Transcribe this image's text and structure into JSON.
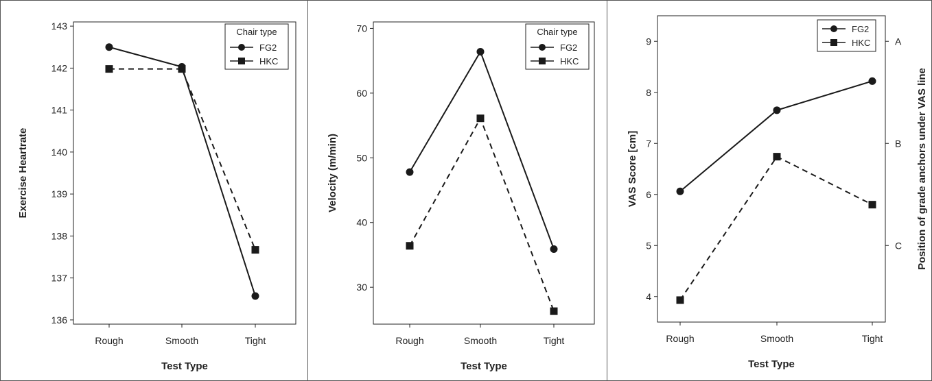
{
  "chart_data": [
    {
      "type": "line",
      "categories": [
        "Rough",
        "Smooth",
        "Tight"
      ],
      "xlabel": "Test Type",
      "ylabel": "Exercise Heartrate",
      "ylim": [
        135.9,
        143.1
      ],
      "yticks": [
        136,
        137,
        138,
        139,
        140,
        141,
        142,
        143
      ],
      "legend": {
        "title": "Chair type",
        "position": "top-right"
      },
      "series": [
        {
          "name": "FG2",
          "marker": "circle",
          "line": "solid",
          "values": [
            142.5,
            142.03,
            136.57
          ]
        },
        {
          "name": "HKC",
          "marker": "square",
          "line": "dashed",
          "values": [
            141.98,
            141.98,
            137.67
          ]
        }
      ]
    },
    {
      "type": "line",
      "categories": [
        "Rough",
        "Smooth",
        "Tight"
      ],
      "xlabel": "Test Type",
      "ylabel": "Velocity (m/min)",
      "ylim": [
        24.3,
        71
      ],
      "yticks": [
        30,
        40,
        50,
        60,
        70
      ],
      "legend": {
        "title": "Chair type",
        "position": "top-right"
      },
      "series": [
        {
          "name": "FG2",
          "marker": "circle",
          "line": "solid",
          "values": [
            47.8,
            66.4,
            35.9
          ]
        },
        {
          "name": "HKC",
          "marker": "square",
          "line": "dashed",
          "values": [
            36.4,
            56.1,
            26.3
          ]
        }
      ]
    },
    {
      "type": "line",
      "categories": [
        "Rough",
        "Smooth",
        "Tight"
      ],
      "xlabel": "Test Type",
      "ylabel": "VAS Score [cm]",
      "ylim": [
        3.5,
        9.5
      ],
      "yticks": [
        4,
        5,
        6,
        7,
        8,
        9
      ],
      "y2label": "Position of grade anchors under VAS line",
      "y2ticks": [
        {
          "label": "A",
          "value": 9.0
        },
        {
          "label": "B",
          "value": 7.0
        },
        {
          "label": "C",
          "value": 5.0
        }
      ],
      "legend": {
        "title": "",
        "position": "top-right"
      },
      "series": [
        {
          "name": "FG2",
          "marker": "circle",
          "line": "solid",
          "values": [
            6.06,
            7.65,
            8.22
          ]
        },
        {
          "name": "HKC",
          "marker": "square",
          "line": "dashed",
          "values": [
            3.93,
            6.74,
            5.8
          ]
        }
      ]
    }
  ]
}
